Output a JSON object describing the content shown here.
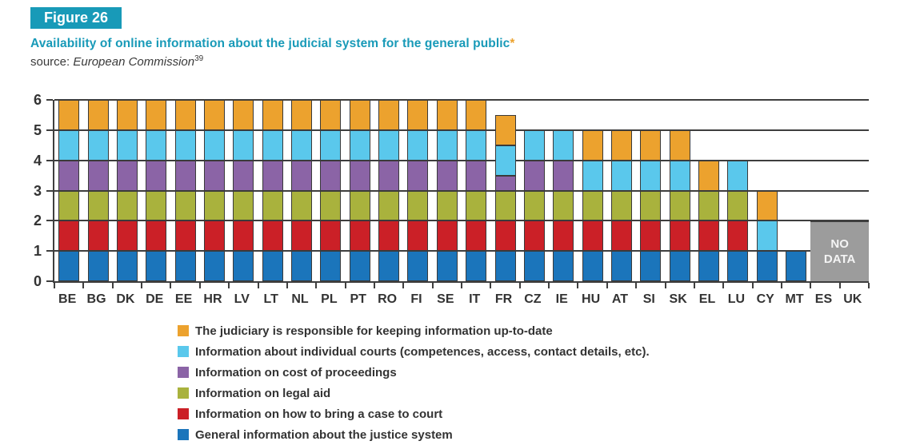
{
  "figure": {
    "badge": "Figure 26",
    "title": "Availability of online information about the judicial system for the general public",
    "title_asterisk": "*",
    "source_prefix": "source: ",
    "source_name": "European Commission",
    "source_footnote": "39"
  },
  "colors": {
    "teal": "#189AB8",
    "orange": "#ECA22E",
    "cyan": "#5AC8EC",
    "purple": "#8B64A6",
    "olive": "#A9B23D",
    "red": "#CB2027",
    "blue": "#1B75BB",
    "no_data_gray": "#9C9C9C",
    "grid": "#3E3E3E",
    "text": "#333333"
  },
  "chart_data": {
    "type": "bar",
    "stacked": true,
    "title": "Availability of online information about the judicial system for the general public",
    "xlabel": "",
    "ylabel": "",
    "ylim": [
      0,
      6
    ],
    "yticks": [
      0,
      1,
      2,
      3,
      4,
      5,
      6
    ],
    "grid": true,
    "legend_position": "bottom",
    "categories": [
      "BE",
      "BG",
      "DK",
      "DE",
      "EE",
      "HR",
      "LV",
      "LT",
      "NL",
      "PL",
      "PT",
      "RO",
      "FI",
      "SE",
      "IT",
      "FR",
      "CZ",
      "IE",
      "HU",
      "AT",
      "SI",
      "SK",
      "EL",
      "LU",
      "CY",
      "MT",
      "ES",
      "UK"
    ],
    "series": [
      {
        "name": "General information about the justice system",
        "color": "blue",
        "values": [
          1,
          1,
          1,
          1,
          1,
          1,
          1,
          1,
          1,
          1,
          1,
          1,
          1,
          1,
          1,
          1,
          1,
          1,
          1,
          1,
          1,
          1,
          1,
          1,
          1,
          1,
          null,
          null
        ]
      },
      {
        "name": "Information on how to bring a case to court",
        "color": "red",
        "values": [
          1,
          1,
          1,
          1,
          1,
          1,
          1,
          1,
          1,
          1,
          1,
          1,
          1,
          1,
          1,
          1,
          1,
          1,
          1,
          1,
          1,
          1,
          1,
          1,
          0,
          0,
          null,
          null
        ]
      },
      {
        "name": "Information on legal aid",
        "color": "olive",
        "values": [
          1,
          1,
          1,
          1,
          1,
          1,
          1,
          1,
          1,
          1,
          1,
          1,
          1,
          1,
          1,
          1,
          1,
          1,
          1,
          1,
          1,
          1,
          1,
          1,
          0,
          0,
          null,
          null
        ]
      },
      {
        "name": "Information on cost of proceedings",
        "color": "purple",
        "values": [
          1,
          1,
          1,
          1,
          1,
          1,
          1,
          1,
          1,
          1,
          1,
          1,
          1,
          1,
          1,
          0.5,
          1,
          1,
          0,
          0,
          0,
          0,
          0,
          0,
          0,
          0,
          null,
          null
        ]
      },
      {
        "name": "Information about individual courts (competences, access, contact details, etc).",
        "color": "cyan",
        "values": [
          1,
          1,
          1,
          1,
          1,
          1,
          1,
          1,
          1,
          1,
          1,
          1,
          1,
          1,
          1,
          1,
          1,
          1,
          1,
          1,
          1,
          1,
          0,
          1,
          1,
          0,
          null,
          null
        ]
      },
      {
        "name": "The judiciary is responsible for keeping information up-to-date",
        "color": "orange",
        "values": [
          1,
          1,
          1,
          1,
          1,
          1,
          1,
          1,
          1,
          1,
          1,
          1,
          1,
          1,
          1,
          1,
          0,
          0,
          1,
          1,
          1,
          1,
          1,
          0,
          1,
          0,
          null,
          null
        ]
      }
    ],
    "no_data": {
      "label": "NO DATA",
      "categories": [
        "ES",
        "UK"
      ],
      "span_units": 2
    }
  },
  "legend": {
    "items": [
      {
        "label": "The judiciary is responsible for keeping information up-to-date",
        "color": "orange"
      },
      {
        "label": "Information about individual courts (competences, access, contact details, etc).",
        "color": "cyan"
      },
      {
        "label": "Information on cost of proceedings",
        "color": "purple"
      },
      {
        "label": "Information on legal aid",
        "color": "olive"
      },
      {
        "label": "Information on how to bring a case to court",
        "color": "red"
      },
      {
        "label": "General information about the justice system",
        "color": "blue"
      }
    ]
  }
}
